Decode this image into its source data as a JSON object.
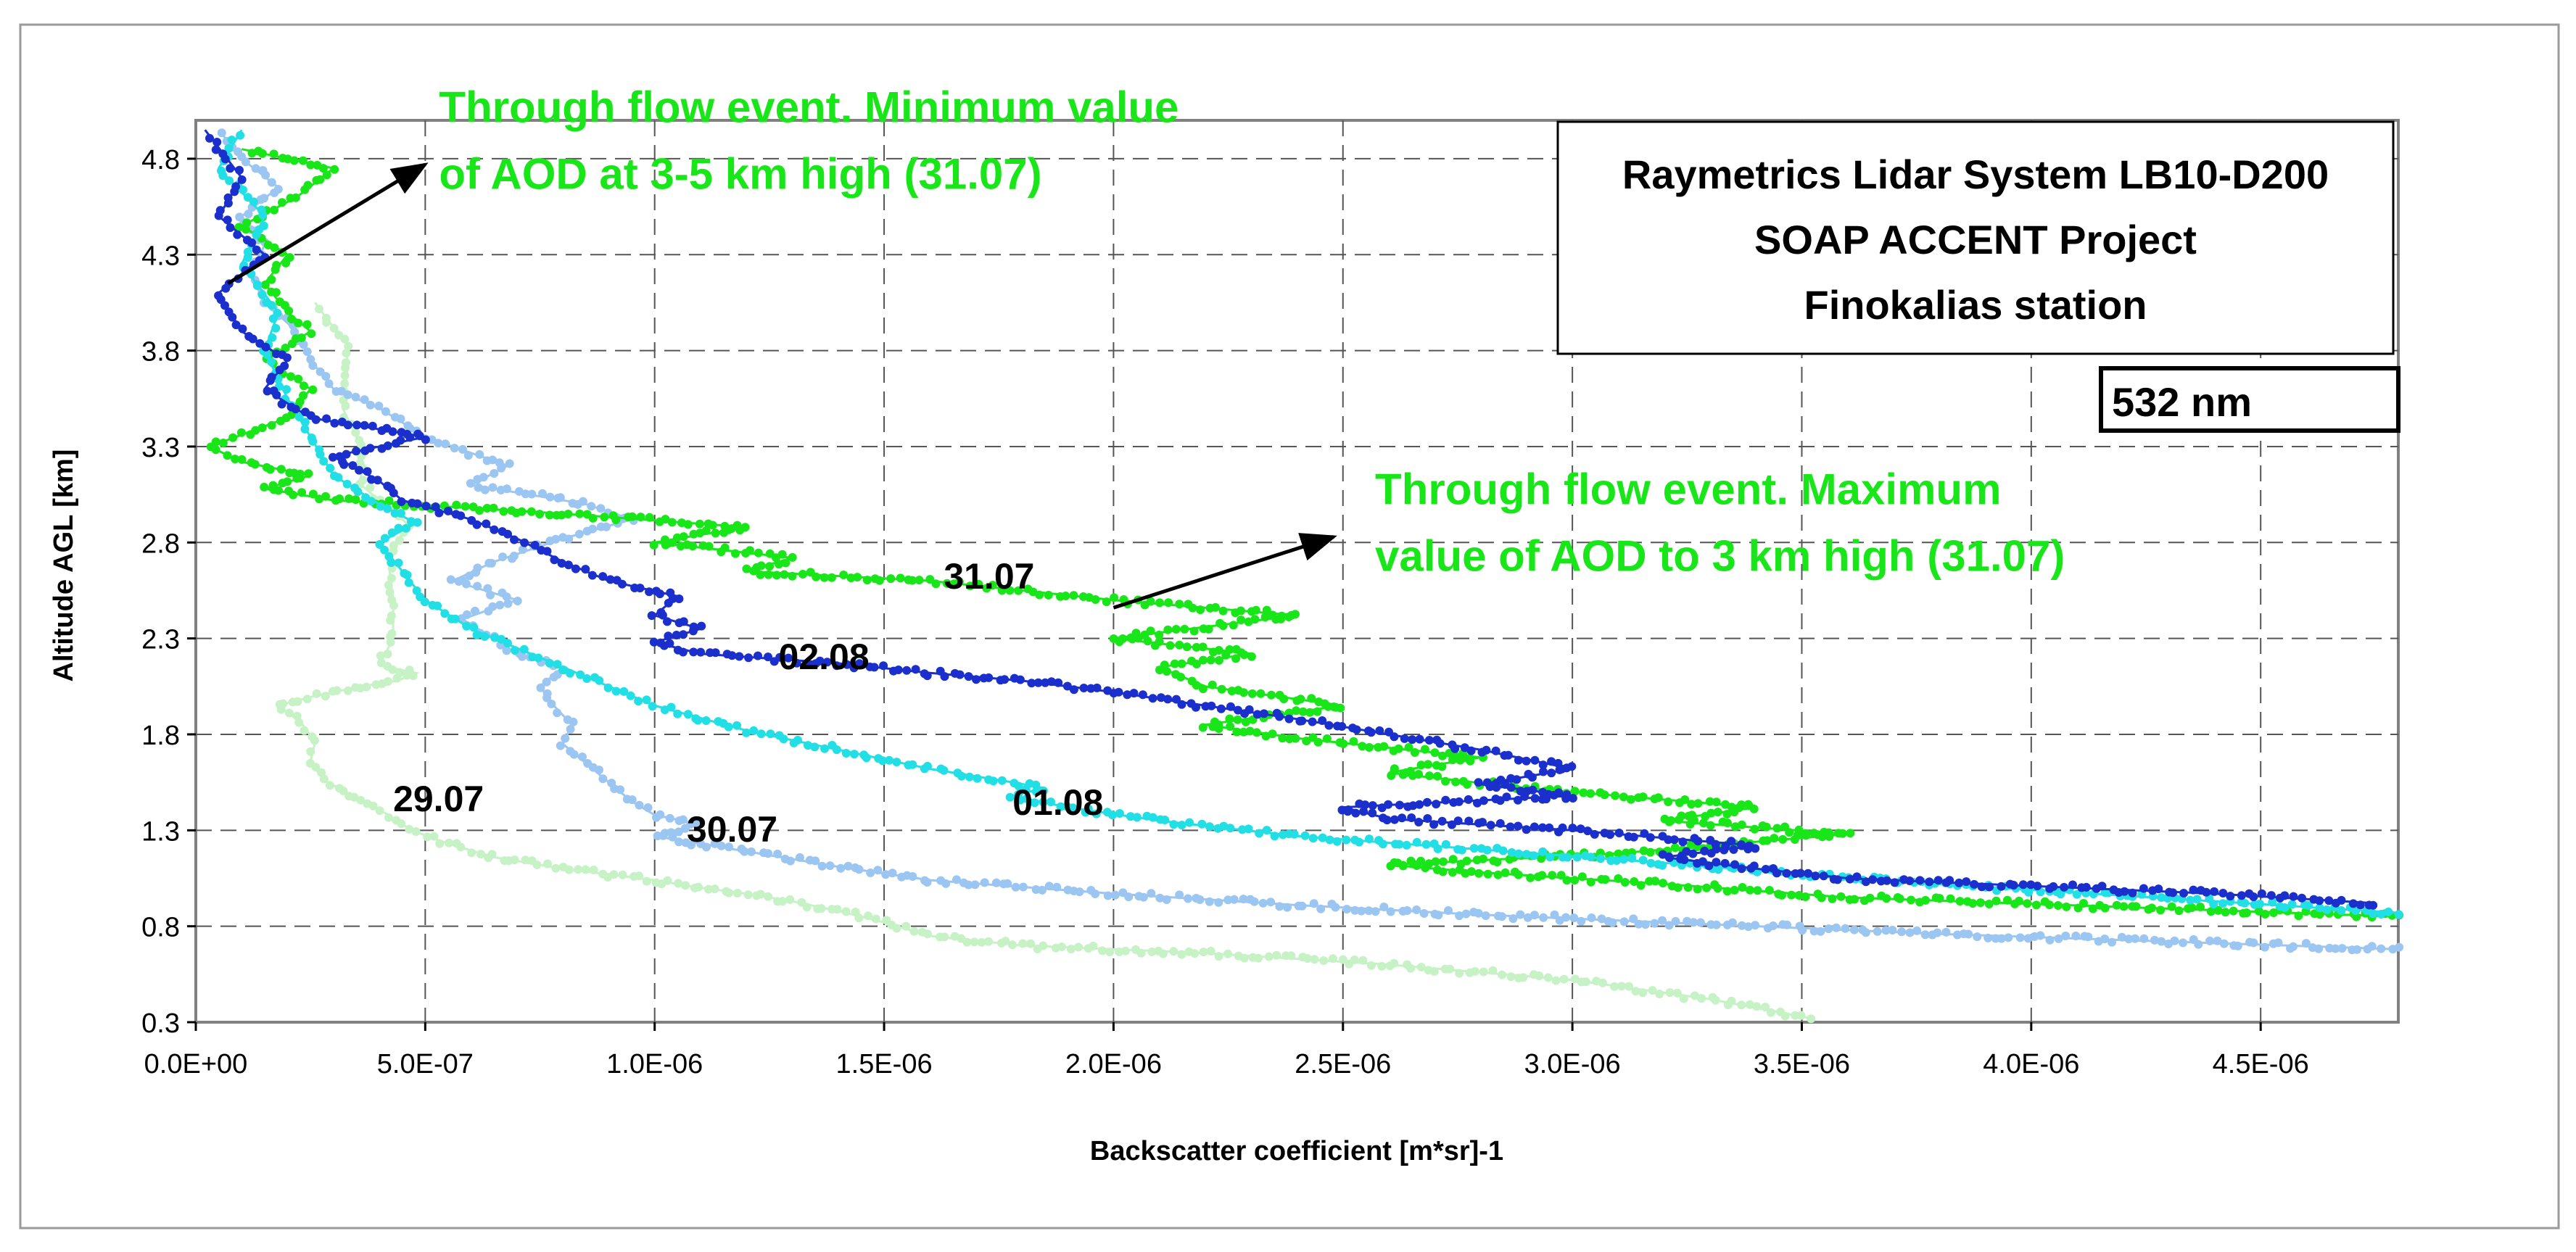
{
  "chart_data": {
    "type": "scatter",
    "xlabel": "Backscatter coefficient [m*sr]-1",
    "ylabel": "Altitude AGL [km]",
    "xlim": [
      0,
      4.8e-06
    ],
    "ylim": [
      0.3,
      5.0
    ],
    "x_tick_values": [
      0,
      5e-07,
      1e-06,
      1.5e-06,
      2e-06,
      2.5e-06,
      3e-06,
      3.5e-06,
      4e-06,
      4.5e-06
    ],
    "x_tick_labels": [
      "0.0E+00",
      "5.0E-07",
      "1.0E-06",
      "1.5E-06",
      "2.0E-06",
      "2.5E-06",
      "3.0E-06",
      "3.5E-06",
      "4.0E-06",
      "4.5E-06"
    ],
    "y_tick_values": [
      0.3,
      0.8,
      1.3,
      1.8,
      2.3,
      2.8,
      3.3,
      3.8,
      4.3,
      4.8
    ],
    "y_tick_labels": [
      "0.3",
      "0.8",
      "1.3",
      "1.8",
      "2.3",
      "2.8",
      "3.3",
      "3.8",
      "4.3",
      "4.8"
    ],
    "grid": true,
    "info_box": {
      "lines": [
        "Raymetrics Lidar System LB10-D200",
        "SOAP ACCENT Project",
        "Finokalias station"
      ]
    },
    "wavelength_label": "532 nm",
    "series": [
      {
        "name": "29.07",
        "color": "#c6f2c6",
        "points": [
          [
            3.52e-06,
            0.32
          ],
          [
            3.3e-06,
            0.42
          ],
          [
            3e-06,
            0.52
          ],
          [
            2.6e-06,
            0.6
          ],
          [
            2.2e-06,
            0.66
          ],
          [
            1.8e-06,
            0.7
          ],
          [
            1.6e-06,
            0.75
          ],
          [
            1.5e-06,
            0.82
          ],
          [
            1.4e-06,
            0.88
          ],
          [
            1.3e-06,
            0.93
          ],
          [
            1.2e-06,
            0.97
          ],
          [
            1.1e-06,
            1.0
          ],
          [
            1e-06,
            1.04
          ],
          [
            8e-07,
            1.1
          ],
          [
            6.5e-07,
            1.16
          ],
          [
            5.5e-07,
            1.23
          ],
          [
            4.7e-07,
            1.3
          ],
          [
            4.2e-07,
            1.38
          ],
          [
            3.5e-07,
            1.47
          ],
          [
            2.8e-07,
            1.56
          ],
          [
            2.5e-07,
            1.66
          ],
          [
            2.6e-07,
            1.76
          ],
          [
            2.3e-07,
            1.86
          ],
          [
            1.8e-07,
            1.95
          ],
          [
            2.6e-07,
            2.0
          ],
          [
            3.6e-07,
            2.05
          ],
          [
            4.4e-07,
            2.08
          ],
          [
            4.8e-07,
            2.12
          ],
          [
            4e-07,
            2.16
          ],
          [
            4.3e-07,
            2.3
          ],
          [
            4.3e-07,
            2.5
          ],
          [
            4.2e-07,
            2.7
          ],
          [
            4.6e-07,
            2.9
          ],
          [
            3.6e-07,
            3.1
          ],
          [
            3.6e-07,
            3.3
          ],
          [
            3.2e-07,
            3.5
          ],
          [
            3.3e-07,
            3.7
          ],
          [
            3.3e-07,
            3.85
          ],
          [
            2.9e-07,
            3.95
          ],
          [
            2.6e-07,
            4.05
          ]
        ]
      },
      {
        "name": "30.07",
        "color": "#9cc6f2",
        "points": [
          [
            4.8e-06,
            0.68
          ],
          [
            4.3e-06,
            0.72
          ],
          [
            3.8e-06,
            0.76
          ],
          [
            3.3e-06,
            0.81
          ],
          [
            2.8e-06,
            0.86
          ],
          [
            2.4e-06,
            0.91
          ],
          [
            2e-06,
            0.97
          ],
          [
            1.6e-06,
            1.04
          ],
          [
            1.4e-06,
            1.11
          ],
          [
            1.2e-06,
            1.19
          ],
          [
            1e-06,
            1.27
          ],
          [
            1.1e-06,
            1.33
          ],
          [
            1e-06,
            1.38
          ],
          [
            9.5e-07,
            1.45
          ],
          [
            9e-07,
            1.55
          ],
          [
            8.5e-07,
            1.65
          ],
          [
            8e-07,
            1.75
          ],
          [
            8.2e-07,
            1.85
          ],
          [
            7.8e-07,
            1.95
          ],
          [
            7.5e-07,
            2.05
          ],
          [
            8e-07,
            2.15
          ],
          [
            7e-07,
            2.22
          ],
          [
            6.5e-07,
            2.3
          ],
          [
            5.8e-07,
            2.4
          ],
          [
            7e-07,
            2.5
          ],
          [
            5.6e-07,
            2.6
          ],
          [
            6.5e-07,
            2.7
          ],
          [
            8e-07,
            2.82
          ],
          [
            9.5e-07,
            2.92
          ],
          [
            8.5e-07,
            3.0
          ],
          [
            6e-07,
            3.1
          ],
          [
            6.8e-07,
            3.2
          ],
          [
            5e-07,
            3.35
          ],
          [
            4e-07,
            3.5
          ],
          [
            3e-07,
            3.6
          ],
          [
            2.5e-07,
            3.75
          ],
          [
            2.2e-07,
            3.9
          ],
          [
            1.5e-07,
            4.05
          ],
          [
            1.2e-07,
            4.2
          ],
          [
            1.5e-07,
            4.35
          ],
          [
            1e-07,
            4.5
          ],
          [
            1.8e-07,
            4.65
          ],
          [
            1e-07,
            4.8
          ],
          [
            5e-08,
            4.95
          ]
        ]
      },
      {
        "name": "31.07",
        "color": "#19e619",
        "points": [
          [
            4.8e-06,
            0.85
          ],
          [
            4.2e-06,
            0.9
          ],
          [
            3.6e-06,
            0.95
          ],
          [
            3.2e-06,
            1.02
          ],
          [
            2.8e-06,
            1.08
          ],
          [
            2.6e-06,
            1.12
          ],
          [
            3.1e-06,
            1.18
          ],
          [
            3.6e-06,
            1.28
          ],
          [
            3.2e-06,
            1.35
          ],
          [
            3.4e-06,
            1.42
          ],
          [
            2.9e-06,
            1.52
          ],
          [
            2.6e-06,
            1.6
          ],
          [
            2.8e-06,
            1.68
          ],
          [
            2.4e-06,
            1.78
          ],
          [
            2.2e-06,
            1.85
          ],
          [
            2.5e-06,
            1.95
          ],
          [
            2.2e-06,
            2.05
          ],
          [
            2.1e-06,
            2.15
          ],
          [
            2.3e-06,
            2.22
          ],
          [
            2e-06,
            2.3
          ],
          [
            2.4e-06,
            2.42
          ],
          [
            2e-06,
            2.5
          ],
          [
            1.6e-06,
            2.6
          ],
          [
            1.2e-06,
            2.65
          ],
          [
            1.3e-06,
            2.72
          ],
          [
            1e-06,
            2.8
          ],
          [
            1.2e-06,
            2.88
          ],
          [
            8e-07,
            2.95
          ],
          [
            6e-07,
            2.98
          ],
          [
            3e-07,
            3.02
          ],
          [
            1.5e-07,
            3.08
          ],
          [
            2.5e-07,
            3.15
          ],
          [
            1e-07,
            3.22
          ],
          [
            3e-08,
            3.3
          ],
          [
            2e-07,
            3.45
          ],
          [
            2.5e-07,
            3.6
          ],
          [
            1.5e-07,
            3.75
          ],
          [
            2.5e-07,
            3.9
          ],
          [
            2e-07,
            4.0
          ],
          [
            1.5e-07,
            4.15
          ],
          [
            2e-07,
            4.3
          ],
          [
            1e-07,
            4.45
          ],
          [
            2.2e-07,
            4.6
          ],
          [
            3e-07,
            4.75
          ],
          [
            1e-07,
            4.85
          ]
        ]
      },
      {
        "name": "01.08",
        "color": "#22dfe6",
        "points": [
          [
            4.8e-06,
            0.87
          ],
          [
            4.4e-06,
            0.93
          ],
          [
            4e-06,
            0.99
          ],
          [
            3.6e-06,
            1.05
          ],
          [
            3.2e-06,
            1.13
          ],
          [
            2.8e-06,
            1.2
          ],
          [
            2.4e-06,
            1.27
          ],
          [
            2.1e-06,
            1.35
          ],
          [
            1.9e-06,
            1.42
          ],
          [
            1.78e-06,
            1.48
          ],
          [
            1.85e-06,
            1.52
          ],
          [
            1.78e-06,
            1.55
          ],
          [
            1.6e-06,
            1.62
          ],
          [
            1.4e-06,
            1.72
          ],
          [
            1.2e-06,
            1.82
          ],
          [
            1e-06,
            1.95
          ],
          [
            9e-07,
            2.05
          ],
          [
            7.5e-07,
            2.2
          ],
          [
            6e-07,
            2.35
          ],
          [
            5e-07,
            2.5
          ],
          [
            4.5e-07,
            2.65
          ],
          [
            4e-07,
            2.8
          ],
          [
            4.8e-07,
            2.9
          ],
          [
            4e-07,
            3.0
          ],
          [
            3e-07,
            3.15
          ],
          [
            2.5e-07,
            3.35
          ],
          [
            2e-07,
            3.55
          ],
          [
            1.5e-07,
            3.8
          ],
          [
            1.8e-07,
            4.0
          ],
          [
            1e-07,
            4.25
          ],
          [
            1.5e-07,
            4.5
          ],
          [
            5e-08,
            4.75
          ],
          [
            1e-07,
            4.95
          ]
        ]
      },
      {
        "name": "02.08",
        "color": "#1a2fcc",
        "points": [
          [
            4.75e-06,
            0.92
          ],
          [
            4.4e-06,
            0.97
          ],
          [
            4e-06,
            1.01
          ],
          [
            3.6e-06,
            1.05
          ],
          [
            3.4e-06,
            1.1
          ],
          [
            3.2e-06,
            1.16
          ],
          [
            3.4e-06,
            1.22
          ],
          [
            3e-06,
            1.3
          ],
          [
            2.6e-06,
            1.36
          ],
          [
            2.5e-06,
            1.42
          ],
          [
            3e-06,
            1.48
          ],
          [
            2.8e-06,
            1.54
          ],
          [
            3e-06,
            1.62
          ],
          [
            2.8e-06,
            1.72
          ],
          [
            2.6e-06,
            1.8
          ],
          [
            2.4e-06,
            1.88
          ],
          [
            2.2e-06,
            1.95
          ],
          [
            2e-06,
            2.02
          ],
          [
            1.8e-06,
            2.08
          ],
          [
            1.6e-06,
            2.12
          ],
          [
            1.4e-06,
            2.17
          ],
          [
            1.1e-06,
            2.22
          ],
          [
            1e-06,
            2.28
          ],
          [
            1.1e-06,
            2.35
          ],
          [
            1e-06,
            2.42
          ],
          [
            1.05e-06,
            2.52
          ],
          [
            9e-07,
            2.6
          ],
          [
            8e-07,
            2.7
          ],
          [
            7e-07,
            2.82
          ],
          [
            6e-07,
            2.92
          ],
          [
            4.5e-07,
            3.02
          ],
          [
            4e-07,
            3.12
          ],
          [
            3e-07,
            3.25
          ],
          [
            5e-07,
            3.35
          ],
          [
            2.5e-07,
            3.45
          ],
          [
            1.5e-07,
            3.6
          ],
          [
            2e-07,
            3.75
          ],
          [
            1e-07,
            3.9
          ],
          [
            5e-08,
            4.1
          ],
          [
            1.5e-07,
            4.3
          ],
          [
            5e-08,
            4.5
          ],
          [
            1e-07,
            4.7
          ],
          [
            2e-08,
            4.95
          ]
        ]
      }
    ],
    "curve_labels": [
      {
        "text": "29.07",
        "x": 4.3e-07,
        "y": 1.4
      },
      {
        "text": "30.07",
        "x": 1.07e-06,
        "y": 1.24
      },
      {
        "text": "31.07",
        "x": 1.63e-06,
        "y": 2.56
      },
      {
        "text": "02.08",
        "x": 1.27e-06,
        "y": 2.14
      },
      {
        "text": "01.08",
        "x": 1.78e-06,
        "y": 1.38
      }
    ],
    "annotations": [
      {
        "name": "annotation-min",
        "color": "#19e619",
        "lines": [
          "Through flow event. Minimum value",
          "of AOD at 3-5 km high (31.07)"
        ],
        "text_x": 5.3e-07,
        "text_y": 4.99,
        "arrow_from": [
          7e-08,
          4.15
        ],
        "arrow_to": [
          5e-07,
          4.77
        ]
      },
      {
        "name": "annotation-max",
        "color": "#19e619",
        "lines": [
          "Through flow event. Maximum",
          "value of AOD to 3 km high (31.07)"
        ],
        "text_x": 2.57e-06,
        "text_y": 3.0,
        "arrow_from": [
          2e-06,
          2.46
        ],
        "arrow_to": [
          2.48e-06,
          2.83
        ]
      }
    ]
  }
}
